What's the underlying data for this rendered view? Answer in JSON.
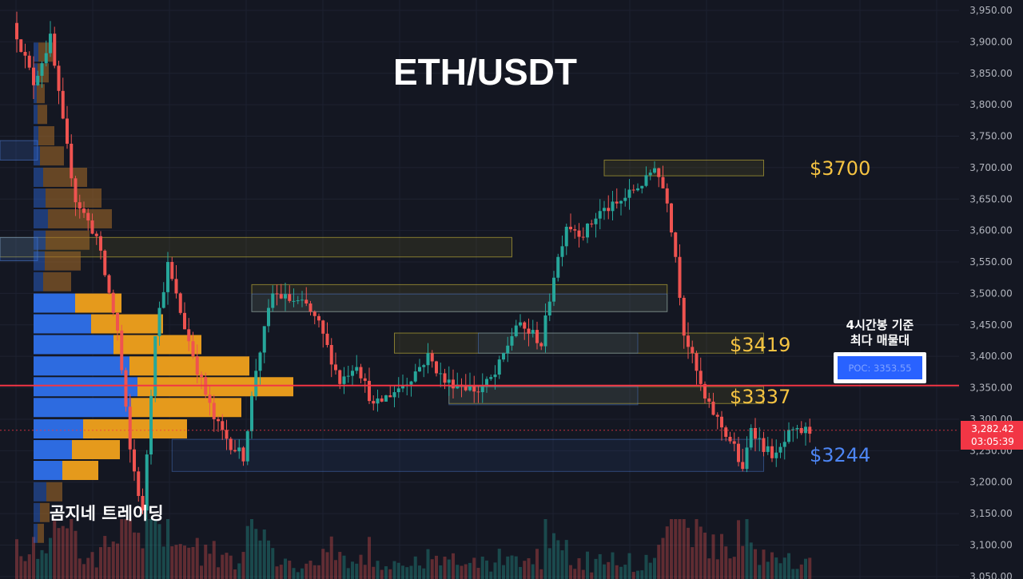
{
  "chart_data": {
    "type": "candlestick",
    "title": "ETH/USDT",
    "watermark": "곰지네 트레이딩",
    "y_axis": {
      "ticks": [
        "3,950.00",
        "3,900.00",
        "3,850.00",
        "3,800.00",
        "3,750.00",
        "3,700.00",
        "3,650.00",
        "3,600.00",
        "3,550.00",
        "3,500.00",
        "3,450.00",
        "3,400.00",
        "3,350.00",
        "3,300.00",
        "3,250.00",
        "3,200.00",
        "3,150.00",
        "3,100.00",
        "3,050.00"
      ],
      "tick_values": [
        3950,
        3900,
        3850,
        3800,
        3750,
        3700,
        3650,
        3600,
        3550,
        3500,
        3450,
        3400,
        3350,
        3300,
        3250,
        3200,
        3150,
        3100,
        3050
      ],
      "range": [
        3048,
        3965
      ],
      "position": "right",
      "grid": true
    },
    "current_price": {
      "label": "3,282.42",
      "timer": "03:05:39",
      "value": 3282.42,
      "color": "#f23645"
    },
    "poc_line": {
      "value": 3353.55,
      "color": "#f23645"
    },
    "poc_box": {
      "caption_line1": "4시간봉 기준",
      "caption_line2": "최다 매물대",
      "label": "POC: 3353.55"
    },
    "level_labels": [
      {
        "text": "$3700",
        "value": 3700,
        "color": "#f5c342"
      },
      {
        "text": "$3419",
        "value": 3419,
        "color": "#f5c342"
      },
      {
        "text": "$3337",
        "value": 3337,
        "color": "#f5c342"
      },
      {
        "text": "$3244",
        "value": 3244,
        "color": "#4d86f5"
      }
    ],
    "zones": [
      {
        "kind": "supply",
        "top": 3712,
        "bottom": 3687,
        "from_index": 140,
        "to_index": 178
      },
      {
        "kind": "supply",
        "top": 3589,
        "bottom": 3558,
        "from_index": 0,
        "to_index": 118
      },
      {
        "kind": "supply",
        "top": 3514,
        "bottom": 3471,
        "from_index": 56,
        "to_index": 155
      },
      {
        "kind": "supply",
        "top": 3437,
        "bottom": 3405,
        "from_index": 90,
        "to_index": 178
      },
      {
        "kind": "supply",
        "top": 3352,
        "bottom": 3325,
        "from_index": 103,
        "to_index": 178
      },
      {
        "kind": "demand",
        "top": 3499,
        "bottom": 3471,
        "from_index": 56,
        "to_index": 155
      },
      {
        "kind": "demand",
        "top": 3437,
        "bottom": 3405,
        "from_index": 110,
        "to_index": 148
      },
      {
        "kind": "demand",
        "top": 3352,
        "bottom": 3323,
        "from_index": 103,
        "to_index": 148
      },
      {
        "kind": "demand",
        "top": 3268,
        "bottom": 3217,
        "from_index": 37,
        "to_index": 178
      }
    ],
    "volume_profile": [
      {
        "price": 3883,
        "up": 6,
        "down": 18
      },
      {
        "price": 3850,
        "up": 5,
        "down": 14
      },
      {
        "price": 3817,
        "up": 4,
        "down": 10
      },
      {
        "price": 3784,
        "up": 5,
        "down": 12
      },
      {
        "price": 3750,
        "up": 6,
        "down": 20
      },
      {
        "price": 3718,
        "up": 8,
        "down": 30
      },
      {
        "price": 3684,
        "up": 12,
        "down": 55
      },
      {
        "price": 3651,
        "up": 15,
        "down": 70
      },
      {
        "price": 3618,
        "up": 18,
        "down": 80
      },
      {
        "price": 3584,
        "up": 15,
        "down": 55
      },
      {
        "price": 3551,
        "up": 14,
        "down": 45
      },
      {
        "price": 3518,
        "up": 12,
        "down": 35
      },
      {
        "price": 3484,
        "up": 52,
        "down": 58
      },
      {
        "price": 3451,
        "up": 72,
        "down": 90
      },
      {
        "price": 3418,
        "up": 100,
        "down": 110
      },
      {
        "price": 3384,
        "up": 120,
        "down": 150
      },
      {
        "price": 3351,
        "up": 130,
        "down": 195
      },
      {
        "price": 3318,
        "up": 122,
        "down": 138
      },
      {
        "price": 3284,
        "up": 62,
        "down": 130
      },
      {
        "price": 3251,
        "up": 48,
        "down": 60
      },
      {
        "price": 3218,
        "up": 36,
        "down": 45
      },
      {
        "price": 3184,
        "up": 16,
        "down": 20
      },
      {
        "price": 3151,
        "up": 8,
        "down": 12
      },
      {
        "price": 3118,
        "up": 5,
        "down": 8
      }
    ],
    "candles": []
  }
}
